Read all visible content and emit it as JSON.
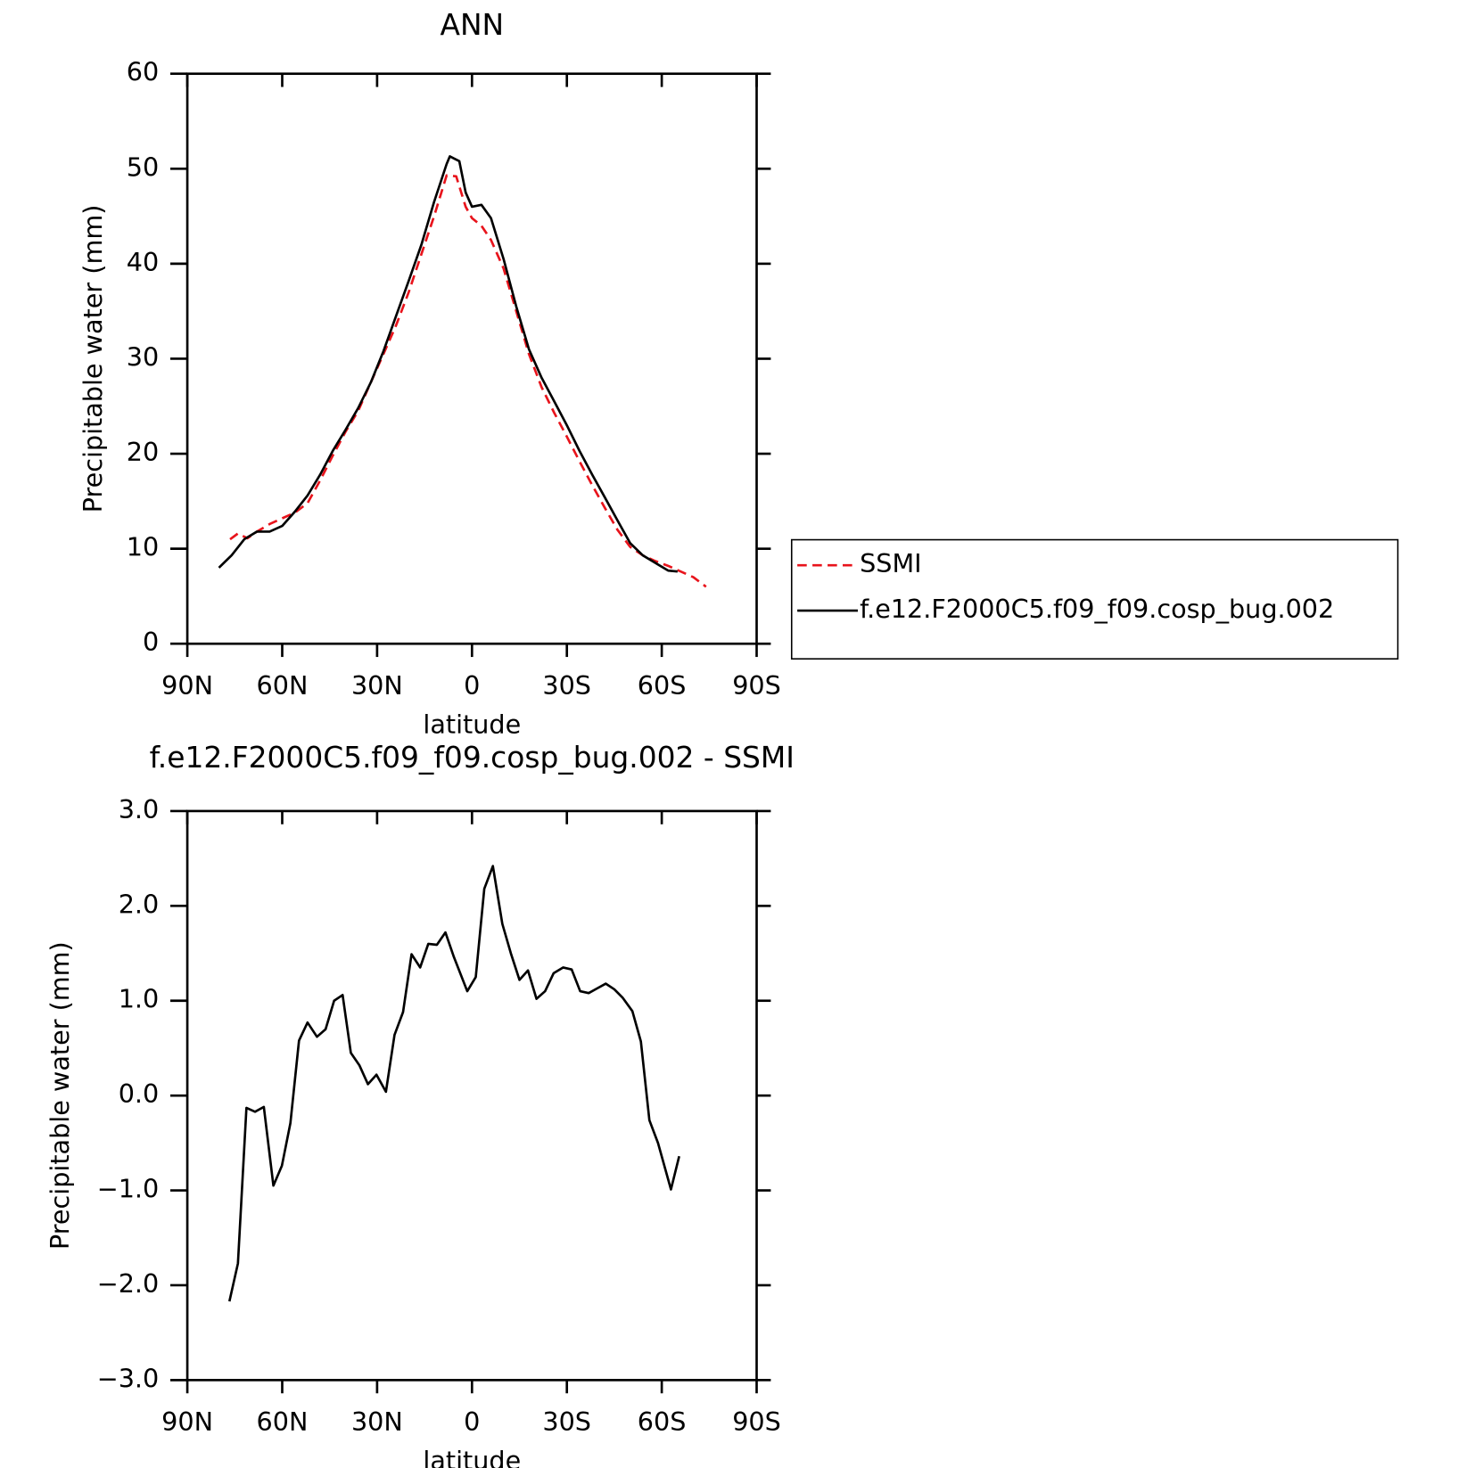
{
  "chart_data": [
    {
      "type": "line",
      "title": "ANN",
      "xlabel": "latitude",
      "ylabel": "Precipitable water (mm)",
      "xlim": [
        90,
        -90
      ],
      "xticks": [
        {
          "value": 90,
          "label": "90N"
        },
        {
          "value": 60,
          "label": "60N"
        },
        {
          "value": 30,
          "label": "30N"
        },
        0,
        {
          "value": -30,
          "label": "30S"
        },
        {
          "value": -60,
          "label": "60S"
        },
        {
          "value": -90,
          "label": "90S"
        }
      ],
      "ylim": [
        0,
        60
      ],
      "yticks": [
        0,
        10,
        20,
        30,
        40,
        50,
        60
      ],
      "legend": "right",
      "series": [
        {
          "name": "SSMI",
          "color": "#e8141c",
          "dash": true,
          "x": [
            76.5,
            74,
            71,
            68,
            64,
            60,
            56,
            52,
            48,
            44,
            40,
            36,
            32,
            28,
            24,
            20,
            16,
            12,
            8,
            5,
            2,
            0,
            -3,
            -6,
            -10,
            -14,
            -18,
            -22,
            -26,
            -30,
            -34,
            -38,
            -42,
            -46,
            -50,
            -54,
            -58,
            -62,
            -66,
            -70,
            -74
          ],
          "values": [
            11.0,
            11.6,
            11.1,
            11.8,
            12.6,
            13.2,
            13.8,
            14.8,
            17.2,
            19.8,
            22.3,
            24.5,
            27.5,
            30.5,
            33.5,
            37.0,
            41.0,
            45.0,
            49.3,
            49.2,
            46.0,
            44.8,
            44.0,
            42.5,
            39.5,
            35.0,
            30.5,
            27.0,
            24.3,
            21.8,
            19.2,
            16.7,
            14.3,
            12.0,
            10.2,
            9.3,
            8.7,
            8.2,
            7.6,
            7.0,
            6.0
          ]
        },
        {
          "name": "f.e12.F2000C5.f09_f09.cosp_bug.002",
          "color": "#000000",
          "dash": false,
          "x": [
            80,
            76,
            72,
            68,
            64,
            60,
            56,
            52,
            48,
            44,
            40,
            36,
            32,
            28,
            24,
            20,
            16,
            12,
            8,
            7,
            4,
            2,
            0,
            -3,
            -6,
            -10,
            -14,
            -18,
            -22,
            -26,
            -30,
            -34,
            -38,
            -42,
            -46,
            -50,
            -54,
            -58,
            -62,
            -65
          ],
          "values": [
            8.0,
            9.3,
            11.0,
            11.8,
            11.8,
            12.4,
            13.9,
            15.6,
            17.8,
            20.3,
            22.5,
            24.8,
            27.5,
            30.8,
            34.5,
            38.2,
            42.0,
            46.5,
            50.5,
            51.3,
            50.8,
            47.5,
            46.0,
            46.2,
            44.8,
            40.5,
            35.5,
            31.0,
            28.0,
            25.5,
            23.0,
            20.3,
            17.8,
            15.4,
            13.0,
            10.6,
            9.3,
            8.5,
            7.7,
            7.6
          ]
        }
      ]
    },
    {
      "type": "line",
      "title": "f.e12.F2000C5.f09_f09.cosp_bug.002 - SSMI",
      "xlabel": "latitude",
      "ylabel": "Precipitable water (mm)",
      "xlim": [
        90,
        -90
      ],
      "xticks": [
        {
          "value": 90,
          "label": "90N"
        },
        {
          "value": 60,
          "label": "60N"
        },
        {
          "value": 30,
          "label": "30N"
        },
        0,
        {
          "value": -30,
          "label": "30S"
        },
        {
          "value": -60,
          "label": "60S"
        },
        {
          "value": -90,
          "label": "90S"
        }
      ],
      "ylim": [
        -3,
        3
      ],
      "yticks": [
        {
          "value": -3,
          "label": "−3.0"
        },
        {
          "value": -2,
          "label": "−2.0"
        },
        {
          "value": -1,
          "label": "−1.0"
        },
        {
          "value": 0,
          "label": "0.0"
        },
        {
          "value": 1,
          "label": "1.0"
        },
        {
          "value": 2,
          "label": "2.0"
        },
        {
          "value": 3,
          "label": "3.0"
        }
      ],
      "series": [
        {
          "color": "#000000",
          "dash": false,
          "x": [
            76.7,
            74.0,
            71.3,
            68.6,
            65.8,
            62.8,
            60.1,
            57.4,
            54.7,
            52.0,
            49.0,
            46.3,
            43.6,
            40.9,
            38.3,
            35.6,
            32.9,
            30.2,
            27.2,
            24.5,
            21.8,
            19.1,
            16.4,
            13.8,
            11.1,
            8.4,
            5.7,
            1.5,
            -1.2,
            -3.9,
            -6.6,
            -9.6,
            -12.3,
            -15.0,
            -17.7,
            -20.4,
            -23.1,
            -25.8,
            -28.8,
            -31.5,
            -34.2,
            -36.9,
            -39.6,
            -42.3,
            -45.0,
            -47.7,
            -50.7,
            -53.4,
            -56.1,
            -58.8,
            -62.9,
            -65.5
          ],
          "values": [
            -2.17,
            -1.77,
            -0.13,
            -0.17,
            -0.12,
            -0.95,
            -0.74,
            -0.29,
            0.58,
            0.77,
            0.62,
            0.7,
            1.0,
            1.06,
            0.45,
            0.32,
            0.12,
            0.22,
            0.04,
            0.64,
            0.88,
            1.49,
            1.35,
            1.6,
            1.59,
            1.72,
            1.46,
            1.1,
            1.25,
            2.18,
            2.42,
            1.81,
            1.5,
            1.22,
            1.32,
            1.02,
            1.1,
            1.29,
            1.35,
            1.33,
            1.1,
            1.08,
            1.13,
            1.18,
            1.12,
            1.03,
            0.89,
            0.57,
            -0.26,
            -0.5,
            -0.99,
            -0.64
          ]
        }
      ]
    }
  ]
}
